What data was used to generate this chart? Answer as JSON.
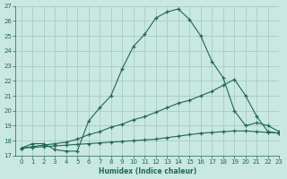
{
  "xlabel": "Humidex (Indice chaleur)",
  "bg_color": "#c8e8e0",
  "grid_color": "#a0c8be",
  "line_color": "#226655",
  "xlim": [
    -0.5,
    23
  ],
  "ylim": [
    17,
    27
  ],
  "series1_x": [
    0,
    1,
    2,
    3,
    4,
    5,
    6,
    7,
    8,
    9,
    10,
    11,
    12,
    13,
    14,
    15,
    16,
    17,
    18,
    19,
    20,
    21,
    22,
    23
  ],
  "series1_y": [
    17.5,
    17.8,
    17.8,
    17.4,
    17.3,
    17.3,
    19.3,
    20.2,
    21.0,
    22.8,
    24.3,
    25.1,
    26.2,
    26.6,
    26.8,
    26.1,
    25.0,
    23.3,
    22.2,
    20.0,
    19.0,
    19.2,
    19.0,
    18.6
  ],
  "series2_x": [
    0,
    1,
    2,
    3,
    4,
    5,
    6,
    7,
    8,
    9,
    10,
    11,
    12,
    13,
    14,
    15,
    16,
    17,
    18,
    19,
    20,
    21,
    22,
    23
  ],
  "series2_y": [
    17.5,
    17.6,
    17.7,
    17.8,
    17.9,
    18.1,
    18.4,
    18.6,
    18.9,
    19.1,
    19.4,
    19.6,
    19.9,
    20.2,
    20.5,
    20.7,
    21.0,
    21.3,
    21.7,
    22.1,
    21.0,
    19.6,
    18.6,
    18.5
  ],
  "series3_x": [
    0,
    1,
    2,
    3,
    4,
    5,
    6,
    7,
    8,
    9,
    10,
    11,
    12,
    13,
    14,
    15,
    16,
    17,
    18,
    19,
    20,
    21,
    22,
    23
  ],
  "series3_y": [
    17.5,
    17.55,
    17.6,
    17.65,
    17.7,
    17.75,
    17.8,
    17.85,
    17.9,
    17.95,
    18.0,
    18.05,
    18.1,
    18.2,
    18.3,
    18.4,
    18.5,
    18.55,
    18.6,
    18.65,
    18.65,
    18.6,
    18.55,
    18.5
  ]
}
